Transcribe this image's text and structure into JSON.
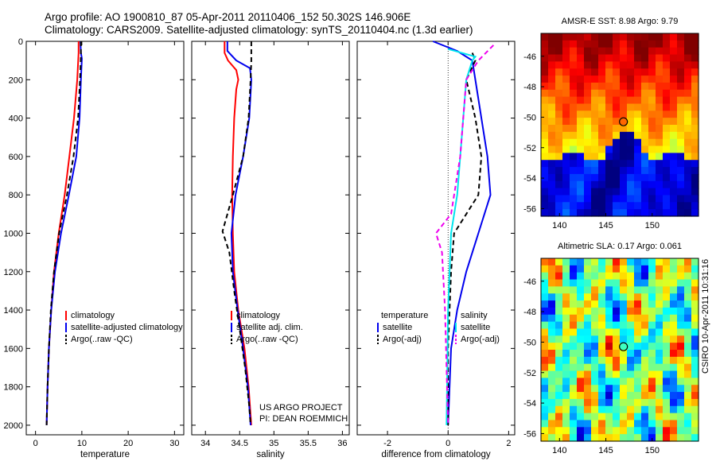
{
  "header": {
    "line1": "Argo profile: AO 1900810_87 05-Apr-2011 20110406_152 50.302S 146.906E",
    "line2": "Climatology: CARS2009. Satellite-adjusted climatology: synTS_20110404.nc (1.3d earlier)"
  },
  "side_label": "CSIRO 10-Apr-2011 10:31:16",
  "project_note": [
    "US ARGO PROJECT",
    "PI: DEAN ROEMMICH"
  ],
  "chart_data": [
    {
      "id": "temperature",
      "type": "line",
      "xlabel": "temperature",
      "xlim": [
        -2,
        32
      ],
      "ylim": [
        0,
        2050
      ],
      "y_reversed": true,
      "xticks": [
        0,
        10,
        20,
        30
      ],
      "yticks": [
        0,
        200,
        400,
        600,
        800,
        1000,
        1200,
        1400,
        1600,
        1800,
        2000
      ],
      "legend": [
        "climatology",
        "satellite-adjusted climatology",
        "Argo(..raw -QC)"
      ],
      "series": [
        {
          "name": "climatology",
          "color": "#ff0000",
          "dash": "",
          "points": [
            [
              9.3,
              0
            ],
            [
              9.3,
              60
            ],
            [
              9.0,
              200
            ],
            [
              8.3,
              400
            ],
            [
              7.3,
              600
            ],
            [
              6.3,
              800
            ],
            [
              5.0,
              1000
            ],
            [
              4.0,
              1200
            ],
            [
              3.4,
              1400
            ],
            [
              2.9,
              1600
            ],
            [
              2.6,
              1800
            ],
            [
              2.4,
              2000
            ]
          ]
        },
        {
          "name": "satellite-adjusted climatology",
          "color": "#0000ee",
          "dash": "",
          "points": [
            [
              9.7,
              0
            ],
            [
              9.8,
              60
            ],
            [
              10.0,
              90
            ],
            [
              9.8,
              200
            ],
            [
              9.5,
              400
            ],
            [
              8.8,
              600
            ],
            [
              7.2,
              800
            ],
            [
              5.5,
              1000
            ],
            [
              4.2,
              1200
            ],
            [
              3.4,
              1400
            ],
            [
              2.9,
              1600
            ],
            [
              2.6,
              1800
            ],
            [
              2.4,
              2000
            ]
          ]
        },
        {
          "name": "Argo(..raw -QC)",
          "color": "#000000",
          "dash": "6,4",
          "points": [
            [
              9.8,
              0
            ],
            [
              9.8,
              80
            ],
            [
              9.6,
              200
            ],
            [
              9.2,
              400
            ],
            [
              8.2,
              600
            ],
            [
              6.8,
              800
            ],
            [
              5.1,
              1000
            ],
            [
              4.0,
              1200
            ],
            [
              3.3,
              1400
            ],
            [
              2.9,
              1600
            ],
            [
              2.6,
              1800
            ],
            [
              2.4,
              2000
            ]
          ]
        }
      ]
    },
    {
      "id": "salinity",
      "type": "line",
      "xlabel": "salinity",
      "xlim": [
        33.8,
        36.1
      ],
      "ylim": [
        0,
        2050
      ],
      "y_reversed": true,
      "xticks": [
        34,
        34.5,
        35,
        35.5,
        36
      ],
      "yticks": [
        0,
        200,
        400,
        600,
        800,
        1000,
        1200,
        1400,
        1600,
        1800,
        2000
      ],
      "legend": [
        "climatology",
        "satellite adj. clim.",
        "Argo(..raw -QC)"
      ],
      "series": [
        {
          "name": "climatology",
          "color": "#ff0000",
          "dash": "",
          "points": [
            [
              34.28,
              0
            ],
            [
              34.28,
              60
            ],
            [
              34.33,
              100
            ],
            [
              34.45,
              150
            ],
            [
              34.48,
              200
            ],
            [
              34.45,
              250
            ],
            [
              34.42,
              400
            ],
            [
              34.4,
              600
            ],
            [
              34.39,
              800
            ],
            [
              34.4,
              1000
            ],
            [
              34.42,
              1200
            ],
            [
              34.48,
              1400
            ],
            [
              34.57,
              1600
            ],
            [
              34.63,
              1800
            ],
            [
              34.67,
              2000
            ]
          ]
        },
        {
          "name": "satellite adj. clim.",
          "color": "#0000ee",
          "dash": "",
          "points": [
            [
              34.32,
              0
            ],
            [
              34.32,
              50
            ],
            [
              34.45,
              100
            ],
            [
              34.65,
              140
            ],
            [
              34.67,
              200
            ],
            [
              34.64,
              400
            ],
            [
              34.55,
              600
            ],
            [
              34.44,
              800
            ],
            [
              34.38,
              1000
            ],
            [
              34.4,
              1200
            ],
            [
              34.47,
              1400
            ],
            [
              34.55,
              1600
            ],
            [
              34.62,
              1800
            ],
            [
              34.66,
              2000
            ]
          ]
        },
        {
          "name": "Argo(..raw -QC)",
          "color": "#000000",
          "dash": "6,4",
          "points": [
            [
              34.67,
              0
            ],
            [
              34.67,
              100
            ],
            [
              34.66,
              200
            ],
            [
              34.63,
              400
            ],
            [
              34.55,
              600
            ],
            [
              34.4,
              800
            ],
            [
              34.25,
              990
            ],
            [
              34.35,
              1100
            ],
            [
              34.42,
              1300
            ],
            [
              34.5,
              1500
            ],
            [
              34.58,
              1700
            ],
            [
              34.64,
              1900
            ],
            [
              34.66,
              2000
            ]
          ]
        }
      ]
    },
    {
      "id": "difference",
      "type": "line",
      "xlabel": "difference from climatology",
      "xlim": [
        -3,
        2.2
      ],
      "ylim": [
        0,
        2050
      ],
      "y_reversed": true,
      "xticks": [
        -2,
        0,
        2
      ],
      "yticks": [
        0,
        200,
        400,
        600,
        800,
        1000,
        1200,
        1400,
        1600,
        1800,
        2000
      ],
      "legend_headers": [
        "temperature",
        "salinity"
      ],
      "legend": [
        "satellite",
        "Argo(-adj)",
        "satellite",
        "Argo(-adj)"
      ],
      "series": [
        {
          "name": "temperature satellite",
          "color": "#0000ee",
          "dash": "",
          "points": [
            [
              -0.5,
              0
            ],
            [
              0.3,
              50
            ],
            [
              0.8,
              100
            ],
            [
              0.9,
              200
            ],
            [
              1.1,
              400
            ],
            [
              1.3,
              600
            ],
            [
              1.4,
              800
            ],
            [
              1.0,
              1000
            ],
            [
              0.6,
              1200
            ],
            [
              0.3,
              1400
            ],
            [
              0.1,
              1600
            ],
            [
              0.0,
              2000
            ]
          ]
        },
        {
          "name": "temperature Argo(-adj)",
          "color": "#000000",
          "dash": "6,4",
          "points": [
            [
              0.8,
              60
            ],
            [
              0.9,
              100
            ],
            [
              0.6,
              200
            ],
            [
              0.9,
              400
            ],
            [
              1.1,
              600
            ],
            [
              1.0,
              800
            ],
            [
              0.6,
              900
            ],
            [
              0.2,
              1000
            ],
            [
              0.1,
              1200
            ],
            [
              0.0,
              1600
            ],
            [
              0.0,
              2000
            ]
          ]
        },
        {
          "name": "salinity satellite",
          "color": "#00e5ee",
          "dash": "",
          "points": [
            [
              0.0,
              40
            ],
            [
              0.9,
              80
            ],
            [
              0.8,
              100
            ],
            [
              0.6,
              200
            ],
            [
              0.5,
              400
            ],
            [
              0.4,
              600
            ],
            [
              0.3,
              800
            ],
            [
              0.1,
              1000
            ],
            [
              0.0,
              1400
            ],
            [
              -0.05,
              2000
            ]
          ]
        },
        {
          "name": "salinity Argo(-adj)",
          "color": "#ee00ee",
          "dash": "6,4",
          "points": [
            [
              1.5,
              20
            ],
            [
              1.0,
              100
            ],
            [
              0.6,
              200
            ],
            [
              0.5,
              400
            ],
            [
              0.4,
              600
            ],
            [
              0.1,
              900
            ],
            [
              -0.4,
              1000
            ],
            [
              -0.2,
              1100
            ],
            [
              -0.1,
              1400
            ],
            [
              0.0,
              2000
            ]
          ]
        }
      ]
    }
  ],
  "maps": [
    {
      "id": "sst",
      "title": "AMSR-E SST: 8.98 Argo: 9.79",
      "xticks": [
        140,
        145,
        150
      ],
      "yticks": [
        -46,
        -48,
        -50,
        -52,
        -54,
        -56
      ],
      "xlim": [
        138,
        155
      ],
      "ylim": [
        -56.5,
        -44.5
      ],
      "marker": [
        146.9,
        -50.3
      ]
    },
    {
      "id": "sla",
      "title": "Altimetric SLA: 0.17 Argo: 0.061",
      "xticks": [
        140,
        145,
        150
      ],
      "yticks": [
        -46,
        -48,
        -50,
        -52,
        -54,
        -56
      ],
      "xlim": [
        138,
        155
      ],
      "ylim": [
        -56.5,
        -44.5
      ],
      "marker": [
        146.9,
        -50.3
      ]
    }
  ]
}
